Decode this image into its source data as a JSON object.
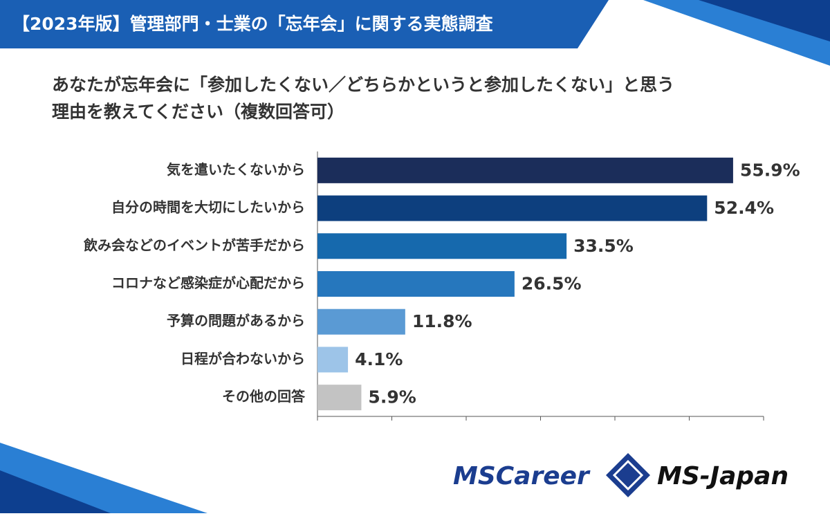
{
  "chart_data": {
    "type": "bar",
    "orientation": "horizontal",
    "title": "【2023年版】管理部門・士業の「忘年会」に関する実態調査",
    "subtitle": [
      "あなたが忘年会に「参加したくない／どちらかというと参加したくない」と思う",
      "理由を教えてください（複数回答可）"
    ],
    "categories": [
      "気を遣いたくないから",
      "自分の時間を大切にしたいから",
      "飲み会などのイベントが苦手だから",
      "コロナなど感染症が心配だから",
      "予算の問題があるから",
      "日程が合わないから",
      "その他の回答"
    ],
    "values": [
      55.9,
      52.4,
      33.5,
      26.5,
      11.8,
      4.1,
      5.9
    ],
    "value_labels": [
      "55.9%",
      "52.4%",
      "33.5%",
      "26.5%",
      "11.8%",
      "4.1%",
      "5.9%"
    ],
    "colors": [
      "#1b2d5a",
      "#0d3f7e",
      "#1669ad",
      "#2677bd",
      "#5a9ad4",
      "#9dc4e8",
      "#c3c3c3"
    ],
    "xlim": [
      0,
      60
    ],
    "xticks": [
      0,
      10,
      20,
      30,
      40,
      50,
      60
    ],
    "logos": [
      "MSCareer",
      "MS-Japan"
    ]
  }
}
